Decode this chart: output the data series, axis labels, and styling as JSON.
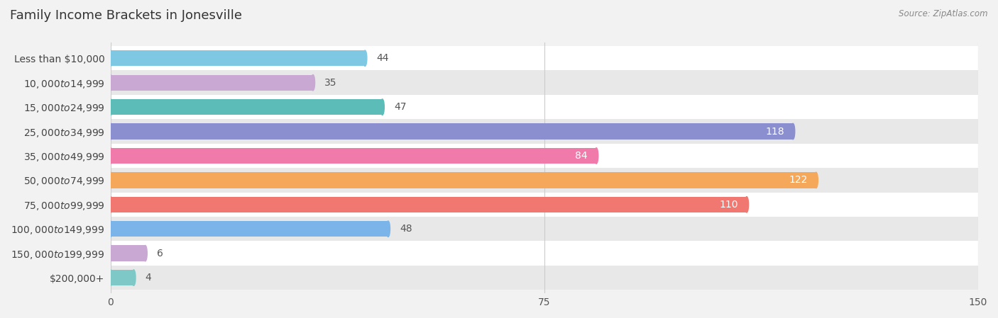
{
  "title": "Family Income Brackets in Jonesville",
  "source": "Source: ZipAtlas.com",
  "categories": [
    "Less than $10,000",
    "$10,000 to $14,999",
    "$15,000 to $24,999",
    "$25,000 to $34,999",
    "$35,000 to $49,999",
    "$50,000 to $74,999",
    "$75,000 to $99,999",
    "$100,000 to $149,999",
    "$150,000 to $199,999",
    "$200,000+"
  ],
  "values": [
    44,
    35,
    47,
    118,
    84,
    122,
    110,
    48,
    6,
    4
  ],
  "bar_colors": [
    "#7ec8e3",
    "#c9a8d4",
    "#5bbcb8",
    "#8b8fcf",
    "#f07aaa",
    "#f5a85a",
    "#f07870",
    "#7ab4e8",
    "#c9a8d4",
    "#7ec8c8"
  ],
  "bg_color": "#f2f2f2",
  "xlim": [
    0,
    150
  ],
  "xticks": [
    0,
    75,
    150
  ],
  "title_fontsize": 13,
  "label_fontsize": 10,
  "tick_fontsize": 10,
  "bar_height": 0.65,
  "inside_label_threshold": 80
}
